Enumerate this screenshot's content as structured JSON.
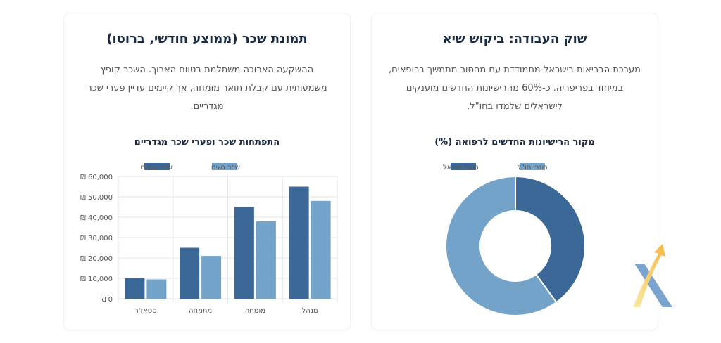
{
  "colors": {
    "dark": "#3c6897",
    "light": "#74a3ca",
    "title": "#1a2b44"
  },
  "wages": {
    "title": "תמונת שכר (ממוצע חודשי, ברוטו)",
    "text": "ההשקעה הארוכה משתלמת בטווח הארוך. השכר קופץ משמעותית עם קבלת תואר מומחה, אך קיימים עדיין פערי שכר מגדריים.",
    "chart_data": {
      "type": "bar",
      "title": "התפתחות שכר ופערי שכר מגדריים",
      "categories": [
        "סטאז'ר",
        "מתמחה",
        "מומחה",
        "מנהל"
      ],
      "series": [
        {
          "name": "שכר גברים",
          "values": [
            10000,
            25000,
            45000,
            55000
          ]
        },
        {
          "name": "שכר נשים",
          "values": [
            9500,
            21000,
            38000,
            48000
          ]
        }
      ],
      "ylim": [
        0,
        60000
      ],
      "yticks": [
        "₪ 0",
        "₪ 10,000",
        "₪ 20,000",
        "₪ 30,000",
        "₪ 40,000",
        "₪ 50,000",
        "₪ 60,000"
      ],
      "grid": true,
      "legend": "top"
    }
  },
  "market": {
    "title": "שוק העבודה: ביקוש שיא",
    "text": "מערכת הבריאות בישראל מתמודדת עם מחסור מתמשך ברופאים, במיוחד בפריפריה. כ-60% מהרישיונות החדשים מוענקים לישראלים שלמדו בחו\"ל.",
    "chart_data": {
      "type": "pie",
      "title": "מקור הרישיונות החדשים לרפואה (%)",
      "labels": [
        "בוגרי ישראל",
        "בוגרי חו\"ל"
      ],
      "values": [
        40,
        60
      ],
      "legend": "top"
    }
  }
}
